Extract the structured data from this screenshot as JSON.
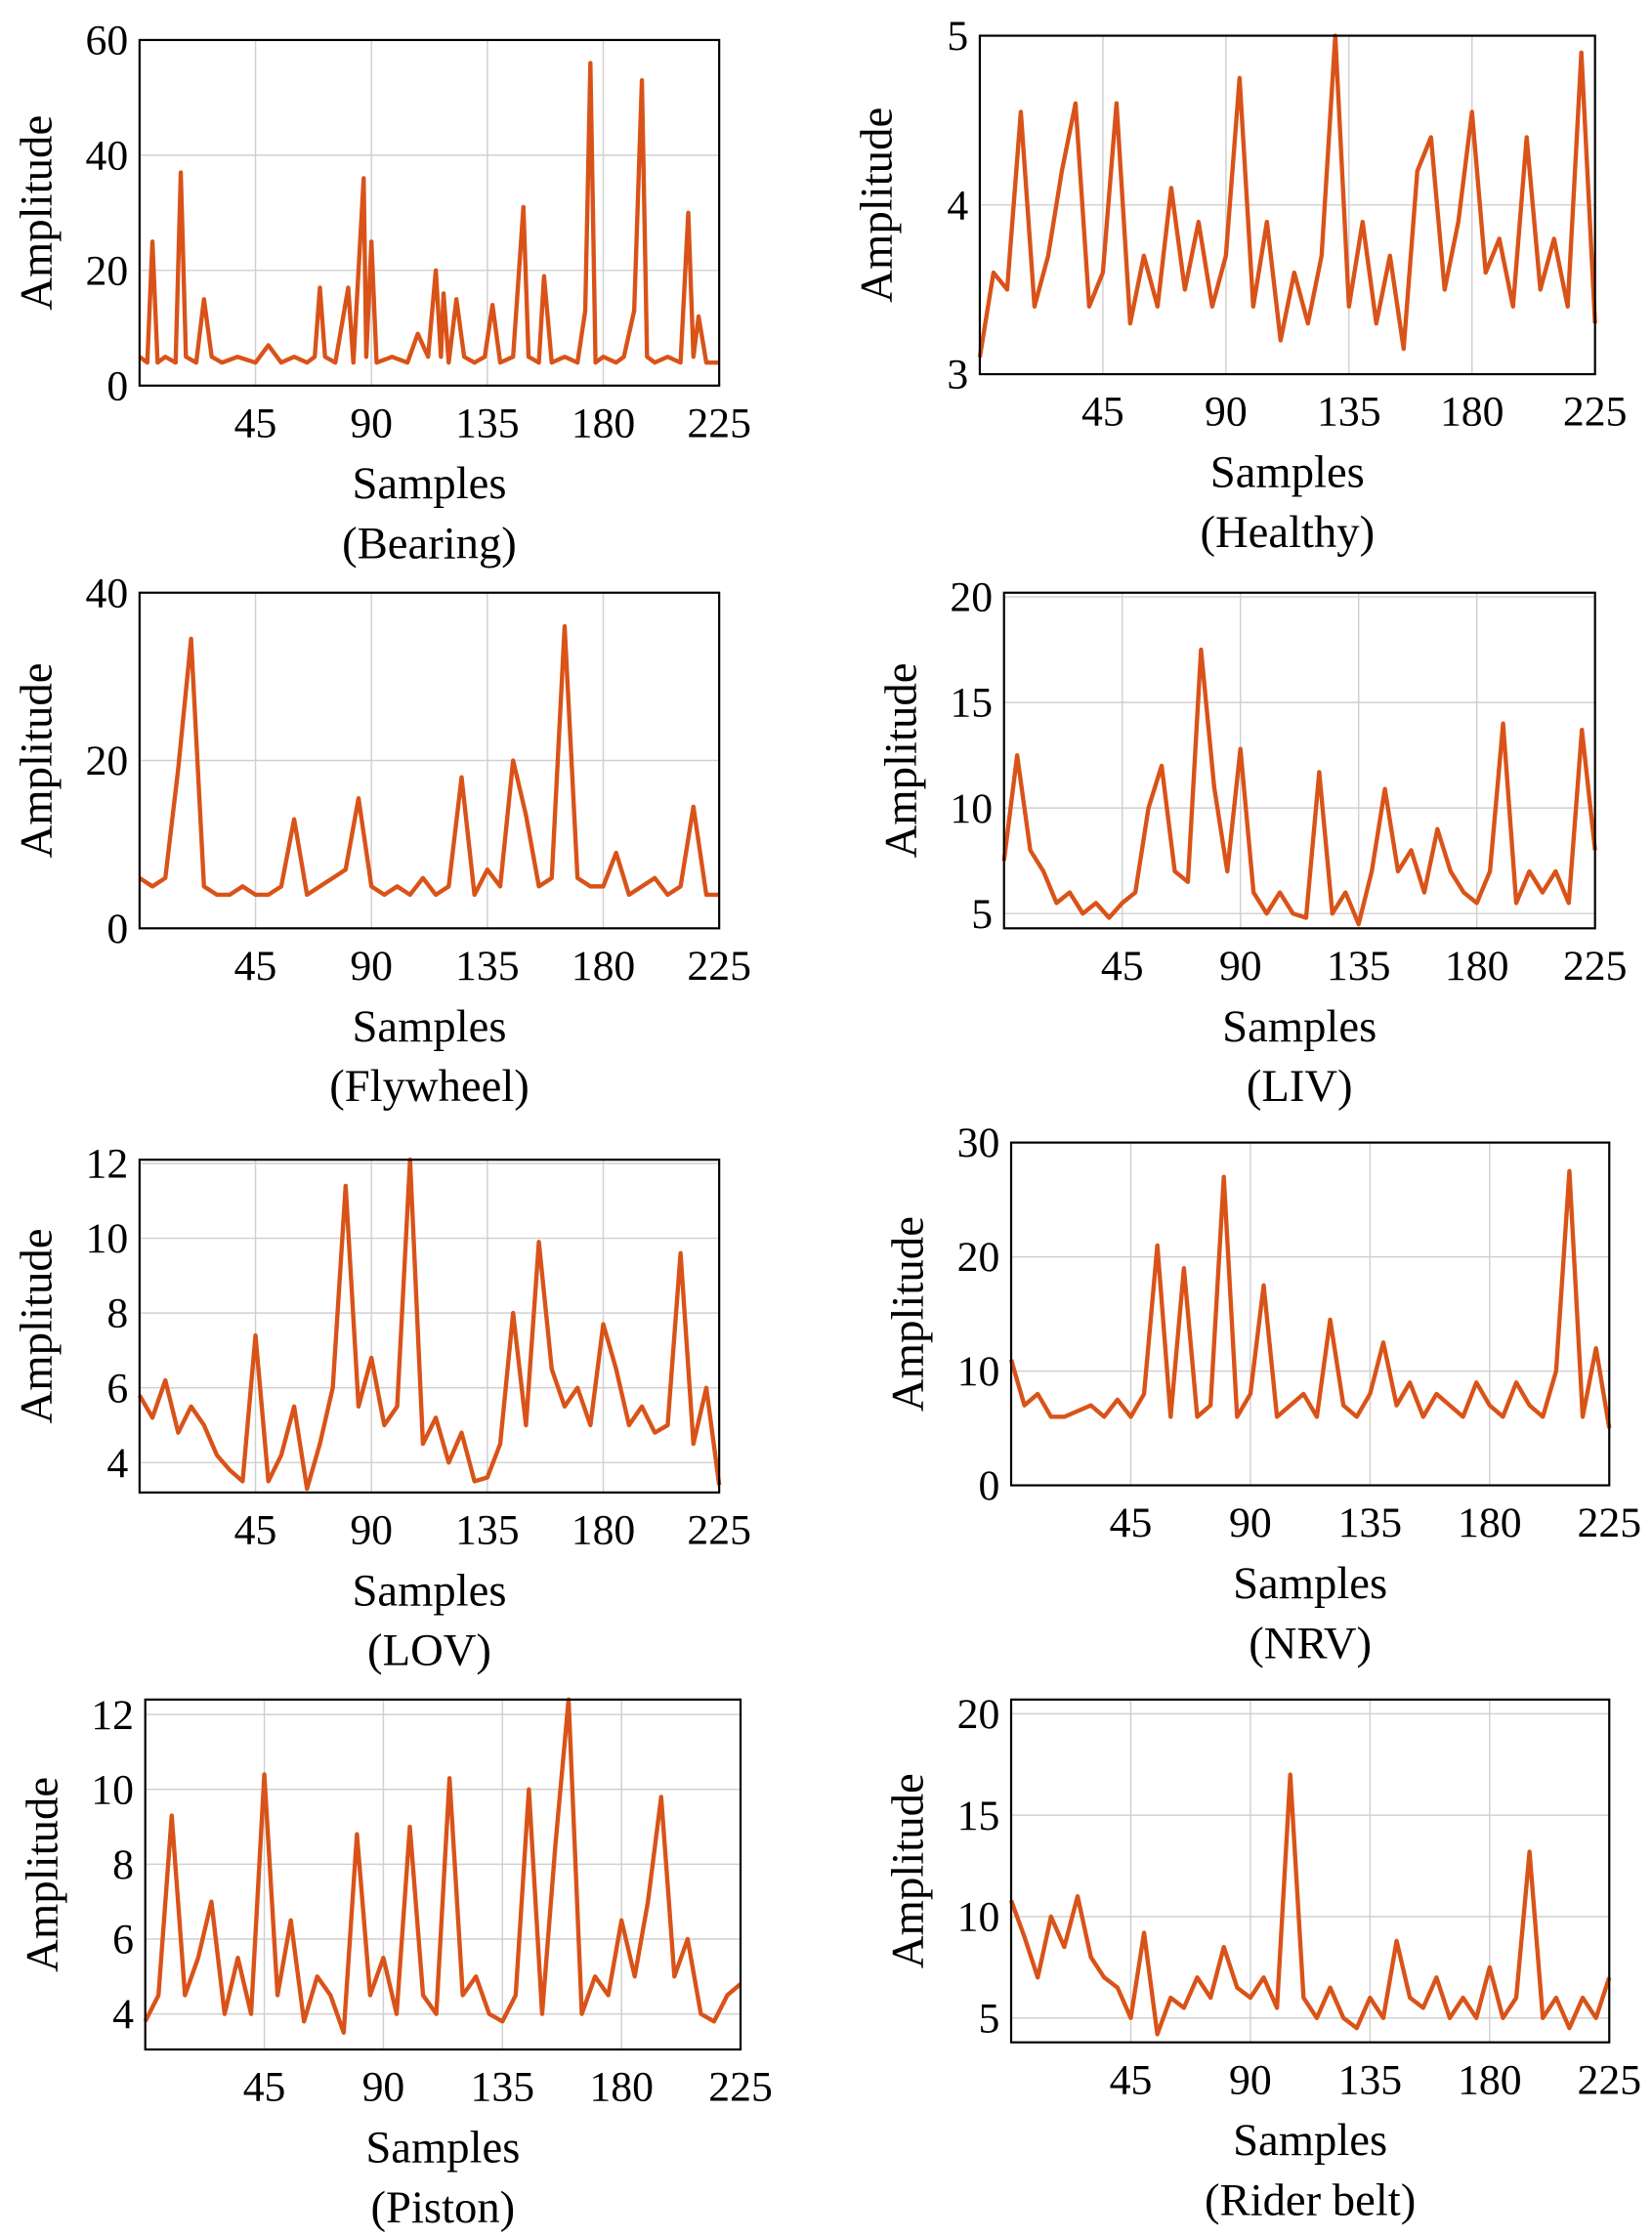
{
  "chart_data": [
    {
      "type": "line",
      "title": "(Bearing)",
      "x_label": "Samples",
      "y_label": "Amplitude",
      "color": "#d95319",
      "grid": true,
      "xlim": [
        0,
        225
      ],
      "xticks": [
        45,
        90,
        135,
        180,
        225
      ],
      "ylim": [
        0,
        60
      ],
      "yticks": [
        0,
        20,
        40,
        60
      ],
      "x": [
        0,
        3,
        5,
        7,
        10,
        14,
        16,
        18,
        22,
        25,
        28,
        32,
        38,
        45,
        50,
        55,
        60,
        65,
        68,
        70,
        72,
        76,
        81,
        83,
        87,
        88,
        90,
        92,
        98,
        104,
        108,
        112,
        115,
        117,
        118,
        120,
        123,
        126,
        130,
        134,
        137,
        140,
        145,
        149,
        151,
        155,
        157,
        160,
        165,
        170,
        173,
        175,
        177,
        180,
        185,
        188,
        192,
        195,
        197,
        200,
        205,
        210,
        213,
        215,
        217,
        220,
        225
      ],
      "values": [
        5,
        4,
        25,
        4,
        5,
        4,
        37,
        5,
        4,
        15,
        5,
        4,
        5,
        4,
        7,
        4,
        5,
        4,
        5,
        17,
        5,
        4,
        17,
        4,
        36,
        5,
        25,
        4,
        5,
        4,
        9,
        5,
        20,
        5,
        16,
        4,
        15,
        5,
        4,
        5,
        14,
        4,
        5,
        31,
        5,
        4,
        19,
        4,
        5,
        4,
        13,
        56,
        4,
        5,
        4,
        5,
        13,
        53,
        5,
        4,
        5,
        4,
        30,
        5,
        12,
        4,
        4
      ]
    },
    {
      "type": "line",
      "title": "(Healthy)",
      "x_label": "Samples",
      "y_label": "Amplitude",
      "color": "#d95319",
      "grid": true,
      "xlim": [
        0,
        225
      ],
      "xticks": [
        45,
        90,
        135,
        180,
        225
      ],
      "ylim": [
        3,
        5
      ],
      "yticks": [
        3,
        4,
        5
      ],
      "x": [
        0,
        5,
        10,
        15,
        20,
        25,
        30,
        35,
        40,
        45,
        50,
        55,
        60,
        65,
        70,
        75,
        80,
        85,
        90,
        95,
        100,
        105,
        110,
        115,
        120,
        125,
        130,
        135,
        140,
        145,
        150,
        155,
        160,
        165,
        170,
        175,
        180,
        185,
        190,
        195,
        200,
        205,
        210,
        215,
        220,
        225
      ],
      "values": [
        3.1,
        3.6,
        3.5,
        4.55,
        3.4,
        3.7,
        4.2,
        4.6,
        3.4,
        3.6,
        4.6,
        3.3,
        3.7,
        3.4,
        4.1,
        3.5,
        3.9,
        3.4,
        3.7,
        4.75,
        3.4,
        3.9,
        3.2,
        3.6,
        3.3,
        3.7,
        5.0,
        3.4,
        3.9,
        3.3,
        3.7,
        3.15,
        4.2,
        4.4,
        3.5,
        3.9,
        4.55,
        3.6,
        3.8,
        3.4,
        4.4,
        3.5,
        3.8,
        3.4,
        4.9,
        3.3
      ]
    },
    {
      "type": "line",
      "title": "(Flywheel)",
      "x_label": "Samples",
      "y_label": "Amplitude",
      "color": "#d95319",
      "grid": true,
      "xlim": [
        0,
        225
      ],
      "xticks": [
        45,
        90,
        135,
        180,
        225
      ],
      "ylim": [
        0,
        40
      ],
      "yticks": [
        0,
        20,
        40
      ],
      "x": [
        0,
        5,
        10,
        15,
        20,
        25,
        30,
        35,
        40,
        45,
        50,
        55,
        60,
        65,
        70,
        75,
        80,
        85,
        90,
        95,
        100,
        105,
        110,
        115,
        120,
        125,
        130,
        135,
        140,
        145,
        150,
        155,
        160,
        165,
        170,
        175,
        180,
        185,
        190,
        195,
        200,
        205,
        210,
        215,
        220,
        225
      ],
      "values": [
        6,
        5,
        6,
        19,
        34.5,
        5,
        4,
        4,
        5,
        4,
        4,
        5,
        13,
        4,
        5,
        6,
        7,
        15.5,
        5,
        4,
        5,
        4,
        6,
        4,
        5,
        18,
        4,
        7,
        5,
        20,
        13.5,
        5,
        6,
        36,
        6,
        5,
        5,
        9,
        4,
        5,
        6,
        4,
        5,
        14.5,
        4,
        4
      ]
    },
    {
      "type": "line",
      "title": "(LIV)",
      "x_label": "Samples",
      "y_label": "Amplitude",
      "color": "#d95319",
      "grid": true,
      "xlim": [
        0,
        225
      ],
      "xticks": [
        45,
        90,
        135,
        180,
        225
      ],
      "ylim": [
        4.3,
        20.2
      ],
      "yticks": [
        5,
        10,
        15,
        20
      ],
      "x": [
        0,
        5,
        10,
        15,
        20,
        25,
        30,
        35,
        40,
        45,
        50,
        55,
        60,
        65,
        70,
        75,
        80,
        85,
        90,
        95,
        100,
        105,
        110,
        115,
        120,
        125,
        130,
        135,
        140,
        145,
        150,
        155,
        160,
        165,
        170,
        175,
        180,
        185,
        190,
        195,
        200,
        205,
        210,
        215,
        220,
        225
      ],
      "values": [
        7.5,
        12.5,
        8,
        7,
        5.5,
        6,
        5,
        5.5,
        4.8,
        5.5,
        6,
        10,
        12,
        7,
        6.5,
        17.5,
        11,
        7,
        12.8,
        6,
        5,
        6,
        5,
        4.8,
        11.7,
        5,
        6,
        4.5,
        7,
        10.9,
        7,
        8,
        6,
        9,
        7,
        6,
        5.5,
        7,
        14,
        5.5,
        7,
        6,
        7,
        5.5,
        13.7,
        8
      ]
    },
    {
      "type": "line",
      "title": "(LOV)",
      "x_label": "Samples",
      "y_label": "Amplitude",
      "color": "#d95319",
      "grid": true,
      "xlim": [
        0,
        225
      ],
      "xticks": [
        45,
        90,
        135,
        180,
        225
      ],
      "ylim": [
        3.2,
        12.1
      ],
      "yticks": [
        4,
        6,
        8,
        10,
        12
      ],
      "x": [
        0,
        5,
        10,
        15,
        20,
        25,
        30,
        35,
        40,
        45,
        50,
        55,
        60,
        65,
        70,
        75,
        80,
        85,
        90,
        95,
        100,
        105,
        110,
        115,
        120,
        125,
        130,
        135,
        140,
        145,
        150,
        155,
        160,
        165,
        170,
        175,
        180,
        185,
        190,
        195,
        200,
        205,
        210,
        215,
        220,
        225
      ],
      "values": [
        5.8,
        5.2,
        6.2,
        4.8,
        5.5,
        5,
        4.2,
        3.8,
        3.5,
        7.4,
        3.5,
        4.2,
        5.5,
        3.3,
        4.5,
        6,
        11.4,
        5.5,
        6.8,
        5,
        5.5,
        12.1,
        4.5,
        5.2,
        4,
        4.8,
        3.5,
        3.6,
        4.5,
        8,
        5,
        9.9,
        6.5,
        5.5,
        6,
        5,
        7.7,
        6.5,
        5,
        5.5,
        4.8,
        5,
        9.6,
        4.5,
        6,
        3.4
      ]
    },
    {
      "type": "line",
      "title": "(NRV)",
      "x_label": "Samples",
      "y_label": "Amplitude",
      "color": "#d95319",
      "grid": true,
      "xlim": [
        0,
        225
      ],
      "xticks": [
        45,
        90,
        135,
        180,
        225
      ],
      "ylim": [
        0,
        30
      ],
      "yticks": [
        0,
        10,
        20,
        30
      ],
      "x": [
        0,
        5,
        10,
        15,
        20,
        25,
        30,
        35,
        40,
        45,
        50,
        55,
        60,
        65,
        70,
        75,
        80,
        85,
        90,
        95,
        100,
        105,
        110,
        115,
        120,
        125,
        130,
        135,
        140,
        145,
        150,
        155,
        160,
        165,
        170,
        175,
        180,
        185,
        190,
        195,
        200,
        205,
        210,
        215,
        220,
        225
      ],
      "values": [
        11,
        7,
        8,
        6,
        6,
        6.5,
        7,
        6,
        7.5,
        6,
        8,
        21,
        6,
        19,
        6,
        7,
        27,
        6,
        8,
        17.5,
        6,
        7,
        8,
        6,
        14.5,
        7,
        6,
        8,
        12.5,
        7,
        9,
        6,
        8,
        7,
        6,
        9,
        7,
        6,
        9,
        7,
        6,
        10,
        27.5,
        6,
        12,
        5
      ]
    },
    {
      "type": "line",
      "title": "(Piston)",
      "x_label": "Samples",
      "y_label": "Amplitude",
      "color": "#d95319",
      "grid": true,
      "xlim": [
        0,
        225
      ],
      "xticks": [
        45,
        90,
        135,
        180,
        225
      ],
      "ylim": [
        3.05,
        12.4
      ],
      "yticks": [
        4,
        6,
        8,
        10,
        12
      ],
      "x": [
        0,
        5,
        10,
        15,
        20,
        25,
        30,
        35,
        40,
        45,
        50,
        55,
        60,
        65,
        70,
        75,
        80,
        85,
        90,
        95,
        100,
        105,
        110,
        115,
        120,
        125,
        130,
        135,
        140,
        145,
        150,
        155,
        160,
        165,
        170,
        175,
        180,
        185,
        190,
        195,
        200,
        205,
        210,
        215,
        220,
        225
      ],
      "values": [
        3.8,
        4.5,
        9.3,
        4.5,
        5.5,
        7,
        4,
        5.5,
        4,
        10.4,
        4.5,
        6.5,
        3.8,
        5,
        4.5,
        3.5,
        8.8,
        4.5,
        5.5,
        4,
        9,
        4.5,
        4,
        10.3,
        4.5,
        5,
        4,
        3.8,
        4.5,
        10,
        4,
        8.5,
        12.4,
        4,
        5,
        4.5,
        6.5,
        5,
        7,
        9.8,
        5,
        6,
        4,
        3.8,
        4.5,
        4.8
      ]
    },
    {
      "type": "line",
      "title": "(Rider belt)",
      "x_label": "Samples",
      "y_label": "Amplitude",
      "color": "#d95319",
      "grid": true,
      "xlim": [
        0,
        225
      ],
      "xticks": [
        45,
        90,
        135,
        180,
        225
      ],
      "ylim": [
        3.8,
        20.7
      ],
      "yticks": [
        5,
        10,
        15,
        20
      ],
      "x": [
        0,
        5,
        10,
        15,
        20,
        25,
        30,
        35,
        40,
        45,
        50,
        55,
        60,
        65,
        70,
        75,
        80,
        85,
        90,
        95,
        100,
        105,
        110,
        115,
        120,
        125,
        130,
        135,
        140,
        145,
        150,
        155,
        160,
        165,
        170,
        175,
        180,
        185,
        190,
        195,
        200,
        205,
        210,
        215,
        220,
        225
      ],
      "values": [
        10.8,
        9,
        7,
        10,
        8.5,
        11,
        8,
        7,
        6.5,
        5,
        9.2,
        4.2,
        6,
        5.5,
        7,
        6,
        8.5,
        6.5,
        6,
        7,
        5.5,
        17,
        6,
        5,
        6.5,
        5,
        4.5,
        6,
        5,
        8.8,
        6,
        5.5,
        7,
        5,
        6,
        5,
        7.5,
        5,
        6,
        13.2,
        5,
        6,
        4.5,
        6,
        5,
        7
      ]
    }
  ]
}
